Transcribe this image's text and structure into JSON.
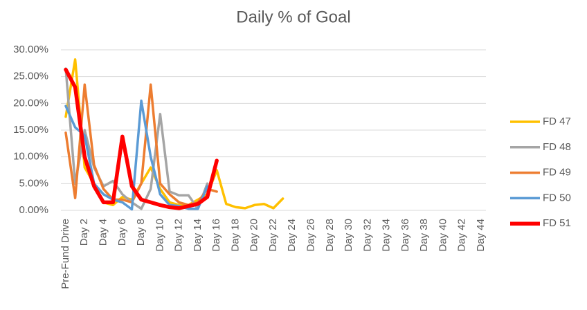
{
  "chart_data": {
    "type": "line",
    "title": "Daily % of Goal",
    "categories": [
      "Pre-Fund Drive",
      null,
      "Day 2",
      null,
      "Day 4",
      null,
      "Day 6",
      null,
      "Day 8",
      null,
      "Day 10",
      null,
      "Day 12",
      null,
      "Day 14",
      null,
      "Day 16",
      null,
      "Day 18",
      null,
      "Day 20",
      null,
      "Day 22",
      null,
      "Day 24",
      null,
      "Day 26",
      null,
      "Day 28",
      null,
      "Day 30",
      null,
      "Day 32",
      null,
      "Day 34",
      null,
      "Day 36",
      null,
      "Day 38",
      null,
      "Day 40",
      null,
      "Day 42",
      null,
      "Day 44"
    ],
    "series": [
      {
        "name": "FD 47",
        "color": "#ffc000",
        "values": [
          17.5,
          28.2,
          8,
          5,
          1.5,
          1,
          2.5,
          2,
          5,
          8,
          4,
          1.5,
          1,
          1,
          2,
          3,
          7.5,
          1.2,
          0.6,
          0.4,
          1,
          1.2,
          0.4,
          2.2,
          null,
          null,
          null,
          null,
          null,
          null,
          null,
          null,
          null,
          null,
          null,
          null,
          null,
          null,
          null,
          null,
          null,
          null,
          null,
          null,
          null
        ]
      },
      {
        "name": "FD 48",
        "color": "#a5a5a5",
        "values": [
          26.5,
          5,
          15,
          8,
          4.5,
          5.5,
          3,
          1.5,
          0.3,
          4,
          18,
          3.5,
          2.8,
          2.8,
          0.3,
          5,
          null,
          null,
          null,
          null,
          null,
          null,
          null,
          null,
          null,
          null,
          null,
          null,
          null,
          null,
          null,
          null,
          null,
          null,
          null,
          null,
          null,
          null,
          null,
          null,
          null,
          null,
          null,
          null,
          null
        ]
      },
      {
        "name": "FD 49",
        "color": "#ed7d31",
        "values": [
          14.5,
          2.3,
          23.5,
          8.5,
          4,
          2,
          2,
          1.5,
          5,
          23.5,
          5,
          3,
          1.5,
          1,
          1.5,
          4,
          3.5,
          null,
          null,
          null,
          null,
          null,
          null,
          null,
          null,
          null,
          null,
          null,
          null,
          null,
          null,
          null,
          null,
          null,
          null,
          null,
          null,
          null,
          null,
          null,
          null,
          null,
          null,
          null,
          null
        ]
      },
      {
        "name": "FD 50",
        "color": "#5b9bd5",
        "values": [
          19.5,
          15.5,
          14,
          5,
          3,
          2,
          1.5,
          0.2,
          20.5,
          10,
          3,
          1,
          0.8,
          0.3,
          0.3,
          4.5,
          null,
          null,
          null,
          null,
          null,
          null,
          null,
          null,
          null,
          null,
          null,
          null,
          null,
          null,
          null,
          null,
          null,
          null,
          null,
          null,
          null,
          null,
          null,
          null,
          null,
          null,
          null,
          null,
          null
        ]
      },
      {
        "name": "FD 51",
        "color": "#ff0000",
        "values": [
          26.3,
          23,
          10,
          4.5,
          1.5,
          1.5,
          13.8,
          4.5,
          2,
          1.5,
          1,
          0.6,
          0.4,
          0.8,
          1.2,
          2.5,
          9.3,
          null,
          null,
          null,
          null,
          null,
          null,
          null,
          null,
          null,
          null,
          null,
          null,
          null,
          null,
          null,
          null,
          null,
          null,
          null,
          null,
          null,
          null,
          null,
          null,
          null,
          null,
          null,
          null
        ]
      }
    ],
    "ylim": [
      0,
      30
    ],
    "yticks": [
      {
        "value": 0,
        "label": "0.00%"
      },
      {
        "value": 5,
        "label": "5.00%"
      },
      {
        "value": 10,
        "label": "10.00%"
      },
      {
        "value": 15,
        "label": "15.00%"
      },
      {
        "value": 20,
        "label": "20.00%"
      },
      {
        "value": 25,
        "label": "25.00%"
      },
      {
        "value": 30,
        "label": "30.00%"
      }
    ],
    "grid": true,
    "legend": "right"
  }
}
